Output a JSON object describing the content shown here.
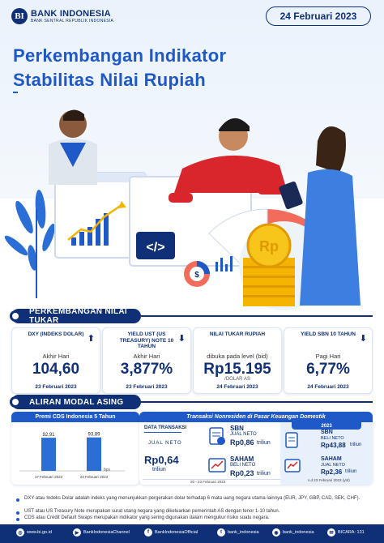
{
  "header": {
    "logo_letters": "BI",
    "org_name": "BANK INDONESIA",
    "org_sub": "BANK SENTRAL REPUBLIK INDONESIA",
    "date": "24 Februari 2023",
    "title_line1": "Perkembangan Indikator",
    "title_line2": "Stabilitas Nilai Rupiah"
  },
  "illustration": {
    "code_symbol": "</>",
    "dollar_symbol": "$",
    "coin_symbol": "Rp"
  },
  "exchange_section": {
    "heading": "PERKEMBANGAN NILAI TUKAR",
    "cards": [
      {
        "title": "DXY (INDEKS DOLAR)",
        "sub": "Akhir Hari",
        "value": "104,60",
        "unit": "",
        "date": "23 Februari 2023",
        "trend": "up"
      },
      {
        "title": "YIELD UST (US TREASURY) NOTE 10 TAHUN",
        "sub": "Akhir Hari",
        "value": "3,877%",
        "unit": "",
        "date": "23 Februari 2023",
        "trend": "down"
      },
      {
        "title": "NILAI TUKAR RUPIAH",
        "sub": "dibuka pada level (bid)",
        "value": "Rp15.195",
        "unit": "/DOLAR AS",
        "date": "24 Februari 2023",
        "trend": ""
      },
      {
        "title": "YIELD SBN 10 TAHUN",
        "sub": "Pagi Hari",
        "value": "6,77%",
        "unit": "",
        "date": "24 Februari 2023",
        "trend": "down"
      }
    ]
  },
  "capital_section": {
    "heading": "ALIRAN MODAL ASING",
    "cds": {
      "title": "Premi CDS Indonesia 5 Tahun",
      "unit_label": "bps"
    },
    "transactions": {
      "title": "Transaksi Nonresiden di Pasar Keuangan Domestik",
      "data_label": "DATA TRANSAKSI",
      "period": "20 - 23 Februari 2023",
      "jual_neto_label": "JUAL NETO",
      "jual_neto_value": "Rp0,64",
      "jual_neto_unit": "triliun",
      "sbn_label": "SBN",
      "sbn_sub": "JUAL NETO",
      "sbn_value": "Rp0,86",
      "sbn_unit": "triliun",
      "saham_label": "SAHAM",
      "saham_sub": "BELI NETO",
      "saham_value": "Rp0,23",
      "saham_unit": "triliun",
      "ytd_year": "2023",
      "ytd_sbn_label": "SBN",
      "ytd_sbn_sub": "BELI NETO",
      "ytd_sbn_value": "Rp43,88",
      "ytd_sbn_unit": "triliun",
      "ytd_saham_label": "SAHAM",
      "ytd_saham_sub": "JUAL NETO",
      "ytd_saham_value": "Rp2,36",
      "ytd_saham_unit": "triliun",
      "ytd_note": "s.d 23 Februari 2023 (ytd)"
    }
  },
  "notes": [
    "DXY atau Indeks Dolar adalah indeks yang menunjukkan pergerakan dolar terhadap 6 mata uang negara utama lainnya (EUR, JPY, GBP, CAD, SEK, CHF).",
    "UST atau US Treasury Note merupakan surat utang negara yang dikeluarkan pemerintah AS dengan tenor 1-10 tahun.",
    "CDS atau Credit Default Swaps merupakan indikator yang sering digunakan dalam mengukur risiko suatu negara."
  ],
  "footer": {
    "web": "www.bi.go.id",
    "youtube": "BankIndonesiaChannel",
    "facebook": "BankIndonesiaOfficial",
    "twitter": "bank_indonesia",
    "instagram": "bank_indonesia",
    "contact": "BICARA: 131"
  },
  "colors": {
    "navy": "#0f2f76",
    "blue": "#1f58c7",
    "up_arrow": "#0f2f76",
    "down_arrow": "#0f2f76",
    "bar": "#2b6fd6"
  },
  "chart_data": {
    "type": "bar",
    "title": "Premi CDS Indonesia 5 Tahun",
    "categories": [
      "17 Februari 2023",
      "23 Februari 2023"
    ],
    "values": [
      92.91,
      93.89
    ],
    "value_labels": [
      "92,91",
      "93,89"
    ],
    "ylabel": "bps",
    "ylim": [
      0,
      100
    ]
  }
}
